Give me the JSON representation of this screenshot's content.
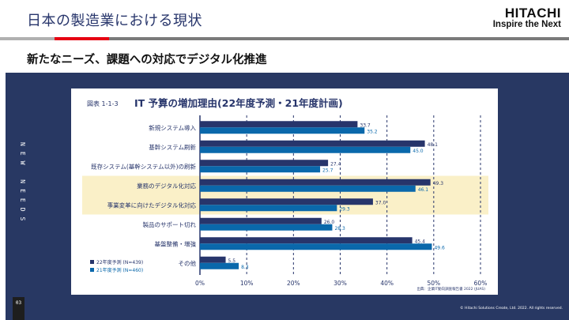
{
  "header": {
    "title": "日本の製造業における現状",
    "subtitle": "新たなニーズ、課題への対応でデジタル化推進",
    "logo_main": "HITACHI",
    "logo_sub": "Inspire the Next"
  },
  "sidebar": {
    "label": "NEW NEEDS",
    "page_number": "03"
  },
  "footer": {
    "copyright": "© Hitachi Solutions Create, Ltd. 2022. All rights reserved."
  },
  "colors": {
    "navy": "#283863",
    "series_2022": "#27356b",
    "series_2021": "#0a68ab",
    "highlight": "#faf0c8",
    "accent_red": "#e60012"
  },
  "chart_data": {
    "type": "bar",
    "orientation": "horizontal",
    "figure_label": "図表 1-1-3",
    "title": "IT 予算の増加理由(22年度予測・21年度計画)",
    "categories": [
      "新規システム導入",
      "基幹システム刷新",
      "既存システム(基幹システム以外)の刷新",
      "業務のデジタル化対応",
      "事業変革に向けたデジタル化対応",
      "製品のサポート切れ",
      "基盤整備・増強",
      "その他"
    ],
    "highlighted_categories": [
      "業務のデジタル化対応",
      "事業変革に向けたデジタル化対応"
    ],
    "series": [
      {
        "name": "22年度予測 (N=439)",
        "values": [
          33.7,
          48.1,
          27.4,
          49.3,
          37.0,
          26.0,
          45.4,
          5.5
        ]
      },
      {
        "name": "21年度予測 (N=460)",
        "values": [
          35.2,
          45.0,
          25.7,
          46.1,
          29.3,
          28.3,
          49.6,
          8.3
        ]
      }
    ],
    "value_labels": [
      [
        "33.7",
        "48.1",
        "27.4",
        "49.3",
        "37.0",
        "26.0",
        "45.4",
        "5.5"
      ],
      [
        "35.2",
        "45.0",
        "25.7",
        "46.1",
        "29.3",
        "28.3",
        "49.6",
        "8.3"
      ]
    ],
    "xlim": [
      0,
      60
    ],
    "xticks": [
      "0%",
      "10%",
      "20%",
      "30%",
      "40%",
      "50%",
      "60%"
    ],
    "grid": "vertical dashed",
    "legend": "bottom-left",
    "source": "出典：企業IT動向調査報告書 2022 (JUAS)"
  }
}
